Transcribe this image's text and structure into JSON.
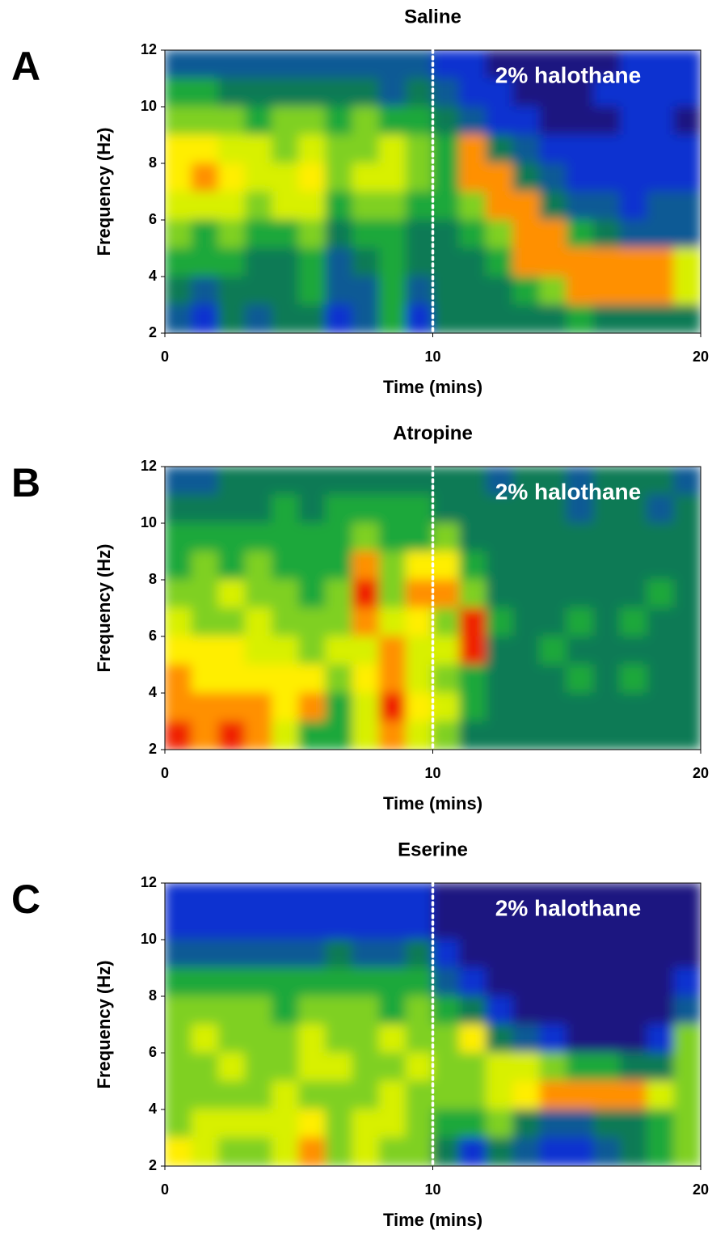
{
  "chart_data": [
    {
      "type": "heatmap",
      "panel_label": "A",
      "title": "Saline",
      "annotation": "2% halothane",
      "xlabel": "Time (mins)",
      "ylabel": "Frequency (Hz)",
      "xlim": [
        0,
        20
      ],
      "xticks": [
        0,
        10,
        20
      ],
      "ylim": [
        2,
        12
      ],
      "yticks": [
        2,
        4,
        6,
        8,
        10,
        12
      ],
      "vline": 10,
      "colors": [
        "#1c1480",
        "#0a30d0",
        "#0a5a95",
        "#0b7a55",
        "#1ea83a",
        "#7fd020",
        "#d8f000",
        "#ffee00",
        "#ff9000",
        "#f02000"
      ],
      "z": [
        [
          2,
          2,
          2,
          2,
          2,
          2,
          2,
          2,
          2,
          2,
          1,
          1,
          0,
          0,
          0,
          0,
          0,
          1,
          1,
          1
        ],
        [
          4,
          4,
          3,
          3,
          3,
          3,
          3,
          3,
          2,
          3,
          2,
          1,
          1,
          0,
          0,
          0,
          1,
          1,
          1,
          1
        ],
        [
          5,
          5,
          5,
          4,
          5,
          5,
          4,
          5,
          4,
          4,
          3,
          2,
          1,
          1,
          0,
          0,
          0,
          1,
          1,
          0
        ],
        [
          7,
          7,
          6,
          6,
          5,
          6,
          5,
          5,
          6,
          5,
          4,
          8,
          3,
          2,
          1,
          1,
          1,
          1,
          1,
          1
        ],
        [
          7,
          8,
          7,
          6,
          6,
          7,
          5,
          6,
          6,
          5,
          4,
          8,
          8,
          3,
          2,
          1,
          1,
          1,
          1,
          1
        ],
        [
          6,
          6,
          6,
          5,
          6,
          6,
          4,
          5,
          5,
          4,
          4,
          5,
          8,
          8,
          3,
          2,
          2,
          1,
          2,
          2
        ],
        [
          5,
          4,
          5,
          4,
          4,
          5,
          3,
          4,
          4,
          3,
          3,
          4,
          5,
          8,
          8,
          4,
          3,
          2,
          2,
          2
        ],
        [
          4,
          4,
          4,
          3,
          3,
          4,
          2,
          3,
          4,
          3,
          3,
          3,
          4,
          8,
          8,
          8,
          8,
          8,
          8,
          6
        ],
        [
          3,
          2,
          3,
          3,
          3,
          4,
          2,
          2,
          4,
          2,
          3,
          3,
          3,
          4,
          5,
          8,
          8,
          8,
          8,
          6
        ],
        [
          2,
          1,
          3,
          2,
          3,
          3,
          1,
          2,
          4,
          1,
          3,
          3,
          3,
          3,
          3,
          4,
          3,
          3,
          3,
          3
        ]
      ]
    },
    {
      "type": "heatmap",
      "panel_label": "B",
      "title": "Atropine",
      "annotation": "2% halothane",
      "xlabel": "Time (mins)",
      "ylabel": "Frequency (Hz)",
      "xlim": [
        0,
        20
      ],
      "xticks": [
        0,
        10,
        20
      ],
      "ylim": [
        2,
        12
      ],
      "yticks": [
        2,
        4,
        6,
        8,
        10,
        12
      ],
      "vline": 10,
      "colors": [
        "#1c1480",
        "#0a30d0",
        "#0a5a95",
        "#0b7a55",
        "#1ea83a",
        "#7fd020",
        "#d8f000",
        "#ffee00",
        "#ff9000",
        "#f02000"
      ],
      "z": [
        [
          2,
          2,
          3,
          3,
          3,
          3,
          3,
          3,
          3,
          3,
          3,
          3,
          2,
          3,
          3,
          2,
          3,
          3,
          3,
          2
        ],
        [
          3,
          3,
          3,
          3,
          4,
          3,
          4,
          4,
          4,
          4,
          3,
          3,
          3,
          3,
          3,
          2,
          3,
          3,
          2,
          3
        ],
        [
          4,
          4,
          4,
          4,
          4,
          4,
          4,
          5,
          4,
          4,
          5,
          3,
          3,
          3,
          3,
          3,
          3,
          3,
          3,
          3
        ],
        [
          4,
          5,
          4,
          5,
          4,
          4,
          4,
          8,
          5,
          7,
          7,
          4,
          3,
          3,
          3,
          3,
          3,
          3,
          3,
          3
        ],
        [
          5,
          5,
          6,
          5,
          5,
          4,
          5,
          9,
          5,
          8,
          8,
          5,
          3,
          3,
          3,
          3,
          3,
          3,
          4,
          3
        ],
        [
          6,
          5,
          5,
          6,
          5,
          5,
          5,
          8,
          6,
          7,
          5,
          9,
          4,
          3,
          3,
          4,
          3,
          4,
          3,
          3
        ],
        [
          7,
          7,
          7,
          6,
          6,
          5,
          6,
          6,
          8,
          6,
          6,
          9,
          3,
          3,
          4,
          3,
          3,
          3,
          3,
          3
        ],
        [
          8,
          7,
          7,
          7,
          7,
          7,
          5,
          7,
          8,
          6,
          5,
          4,
          3,
          3,
          3,
          4,
          3,
          4,
          3,
          3
        ],
        [
          8,
          8,
          8,
          8,
          7,
          8,
          4,
          6,
          9,
          7,
          6,
          4,
          3,
          3,
          3,
          3,
          3,
          3,
          3,
          3
        ],
        [
          9,
          8,
          9,
          8,
          6,
          4,
          4,
          6,
          8,
          6,
          5,
          3,
          3,
          3,
          3,
          3,
          3,
          3,
          3,
          3
        ]
      ]
    },
    {
      "type": "heatmap",
      "panel_label": "C",
      "title": "Eserine",
      "annotation": "2% halothane",
      "xlabel": "Time (mins)",
      "ylabel": "Frequency (Hz)",
      "xlim": [
        0,
        20
      ],
      "xticks": [
        0,
        10,
        20
      ],
      "ylim": [
        2,
        12
      ],
      "yticks": [
        2,
        4,
        6,
        8,
        10,
        12
      ],
      "vline": 10,
      "colors": [
        "#1c1480",
        "#0a30d0",
        "#0a5a95",
        "#0b7a55",
        "#1ea83a",
        "#7fd020",
        "#d8f000",
        "#ffee00",
        "#ff9000",
        "#f02000"
      ],
      "z": [
        [
          1,
          1,
          1,
          1,
          1,
          1,
          1,
          1,
          1,
          1,
          0,
          0,
          0,
          0,
          0,
          0,
          0,
          0,
          0,
          0
        ],
        [
          1,
          1,
          1,
          1,
          1,
          1,
          1,
          1,
          1,
          1,
          0,
          0,
          0,
          0,
          0,
          0,
          0,
          0,
          0,
          0
        ],
        [
          2,
          2,
          2,
          2,
          2,
          2,
          3,
          2,
          2,
          3,
          1,
          0,
          0,
          0,
          0,
          0,
          0,
          0,
          0,
          0
        ],
        [
          4,
          4,
          4,
          4,
          4,
          4,
          4,
          4,
          4,
          4,
          2,
          1,
          0,
          0,
          0,
          0,
          0,
          0,
          0,
          1
        ],
        [
          5,
          5,
          5,
          5,
          4,
          5,
          5,
          5,
          4,
          5,
          4,
          3,
          1,
          0,
          0,
          0,
          0,
          0,
          0,
          2
        ],
        [
          5,
          6,
          5,
          5,
          5,
          6,
          5,
          5,
          6,
          5,
          5,
          7,
          3,
          2,
          1,
          0,
          0,
          0,
          1,
          5
        ],
        [
          5,
          5,
          6,
          5,
          5,
          6,
          6,
          5,
          5,
          6,
          5,
          5,
          6,
          6,
          5,
          4,
          4,
          3,
          3,
          5
        ],
        [
          5,
          5,
          5,
          5,
          6,
          5,
          5,
          5,
          6,
          5,
          5,
          5,
          6,
          7,
          8,
          8,
          8,
          8,
          6,
          5
        ],
        [
          5,
          6,
          6,
          6,
          6,
          7,
          5,
          6,
          6,
          5,
          4,
          4,
          5,
          3,
          2,
          2,
          3,
          3,
          4,
          5
        ],
        [
          7,
          6,
          5,
          5,
          6,
          8,
          5,
          6,
          5,
          5,
          3,
          1,
          3,
          2,
          1,
          1,
          2,
          3,
          4,
          5
        ]
      ]
    }
  ]
}
